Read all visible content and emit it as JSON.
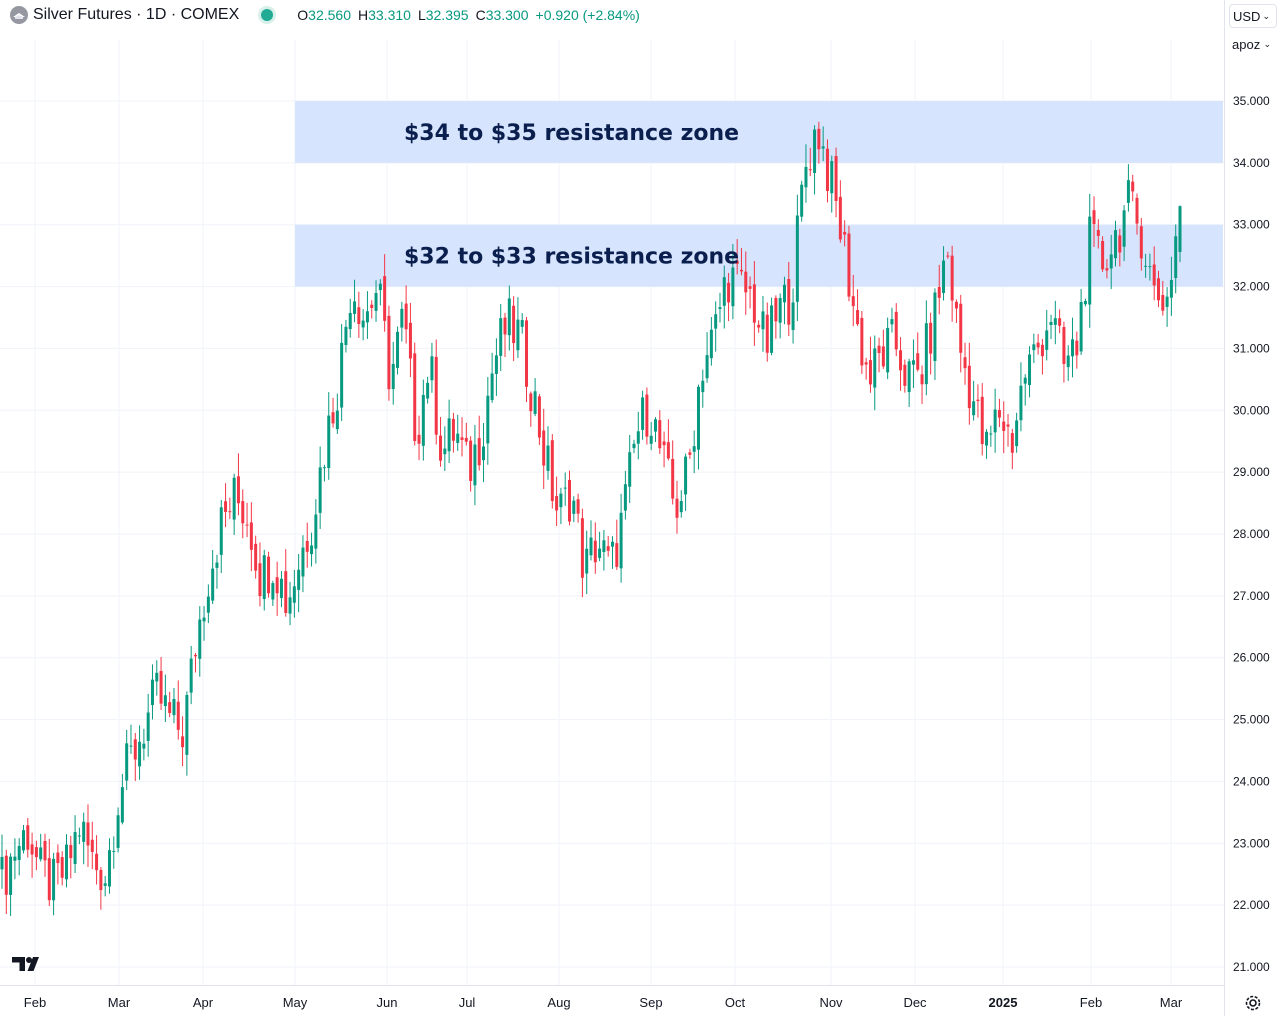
{
  "header": {
    "title": "Silver Futures · 1D · COMEX",
    "o_label": "O",
    "o_value": "32.560",
    "h_label": "H",
    "h_value": "33.310",
    "l_label": "L",
    "l_value": "32.395",
    "c_label": "C",
    "c_value": "33.300",
    "change": "+0.920 (+2.84%)"
  },
  "controls": {
    "currency": "USD",
    "unit": "apoz"
  },
  "icons": {
    "symbol": "silver-symbol-icon",
    "logo": "tradingview-logo-icon",
    "settings": "gear-icon"
  },
  "colors": {
    "up": "#089981",
    "down": "#f23645",
    "zone": "#d6e4fd",
    "label": "#0b1f4e",
    "grid": "#f0f3fa"
  },
  "chart_data": {
    "type": "candlestick",
    "y_axis": {
      "min": 21,
      "max": 35,
      "ticks": [
        "21.000",
        "22.000",
        "23.000",
        "24.000",
        "25.000",
        "26.000",
        "27.000",
        "28.000",
        "29.000",
        "30.000",
        "31.000",
        "32.000",
        "33.000",
        "34.000",
        "35.000"
      ]
    },
    "x_axis": {
      "ticks": [
        "Feb",
        "Mar",
        "Apr",
        "May",
        "Jun",
        "Jul",
        "Aug",
        "Sep",
        "Oct",
        "Nov",
        "Dec",
        "2025",
        "Feb",
        "Mar"
      ]
    },
    "zones": [
      {
        "low": 34,
        "high": 35,
        "start_month": "May",
        "label": "$34 to $35 resistance zone"
      },
      {
        "low": 32,
        "high": 33,
        "start_month": "May",
        "label": "$32 to $33 resistance zone"
      }
    ],
    "anchors": [
      [
        "Feb",
        22.4
      ],
      [
        "Feb",
        22.9
      ],
      [
        "Feb",
        23.2
      ],
      [
        "Feb",
        22.5
      ],
      [
        "Feb",
        22.3
      ],
      [
        "Mar",
        22.6
      ],
      [
        "Mar",
        23.3
      ],
      [
        "Mar",
        22.7
      ],
      [
        "Mar",
        22.5
      ],
      [
        "Mar",
        23.8
      ],
      [
        "Mar",
        24.4
      ],
      [
        "Apr",
        24.9
      ],
      [
        "Apr",
        25.4
      ],
      [
        "Apr",
        25.0
      ],
      [
        "Apr",
        24.8
      ],
      [
        "Apr",
        26.3
      ],
      [
        "Apr",
        27.4
      ],
      [
        "Apr",
        28.2
      ],
      [
        "Apr",
        28.6
      ],
      [
        "Apr",
        28.3
      ],
      [
        "May",
        27.3
      ],
      [
        "May",
        27.6
      ],
      [
        "May",
        26.9
      ],
      [
        "May",
        27.6
      ],
      [
        "May",
        28.3
      ],
      [
        "May",
        29.5
      ],
      [
        "May",
        30.5
      ],
      [
        "May",
        32.1
      ],
      [
        "May",
        31.5
      ],
      [
        "Jun",
        32.0
      ],
      [
        "Jun",
        30.5
      ],
      [
        "Jun",
        31.5
      ],
      [
        "Jun",
        29.6
      ],
      [
        "Jun",
        30.8
      ],
      [
        "Jun",
        29.3
      ],
      [
        "Jun",
        29.7
      ],
      [
        "Jun",
        29.0
      ],
      [
        "Jul",
        29.6
      ],
      [
        "Jul",
        30.8
      ],
      [
        "Jul",
        31.4
      ],
      [
        "Jul",
        31.2
      ],
      [
        "Jul",
        30.3
      ],
      [
        "Jul",
        29.2
      ],
      [
        "Aug",
        28.3
      ],
      [
        "Aug",
        28.7
      ],
      [
        "Aug",
        27.4
      ],
      [
        "Aug",
        27.9
      ],
      [
        "Aug",
        27.4
      ],
      [
        "Sep",
        28.3
      ],
      [
        "Sep",
        29.6
      ],
      [
        "Sep",
        30.1
      ],
      [
        "Sep",
        29.2
      ],
      [
        "Sep",
        28.4
      ],
      [
        "Sep",
        29.0
      ],
      [
        "Sep",
        30.7
      ],
      [
        "Sep",
        31.2
      ],
      [
        "Oct",
        32.2
      ],
      [
        "Oct",
        32.0
      ],
      [
        "Oct",
        31.8
      ],
      [
        "Oct",
        31.0
      ],
      [
        "Oct",
        31.6
      ],
      [
        "Oct",
        31.9
      ],
      [
        "Oct",
        33.9
      ],
      [
        "Oct",
        34.6
      ],
      [
        "Oct",
        33.7
      ],
      [
        "Nov",
        32.7
      ],
      [
        "Nov",
        31.4
      ],
      [
        "Nov",
        30.5
      ],
      [
        "Nov",
        30.9
      ],
      [
        "Nov",
        31.1
      ],
      [
        "Nov",
        30.5
      ],
      [
        "Dec",
        30.6
      ],
      [
        "Dec",
        31.5
      ],
      [
        "Dec",
        32.6
      ],
      [
        "Dec",
        31.0
      ],
      [
        "Dec",
        30.2
      ],
      [
        "Dec",
        29.3
      ],
      [
        "Dec",
        30.0
      ],
      [
        "2025",
        29.5
      ],
      [
        "2025",
        30.6
      ],
      [
        "2025",
        31.0
      ],
      [
        "2025",
        31.6
      ],
      [
        "2025",
        30.7
      ],
      [
        "2025",
        31.0
      ],
      [
        "Feb",
        32.7
      ],
      [
        "Feb",
        32.4
      ],
      [
        "Feb",
        32.8
      ],
      [
        "Feb",
        33.3
      ],
      [
        "Feb",
        32.9
      ],
      [
        "Mar",
        31.9
      ],
      [
        "Mar",
        31.8
      ],
      [
        "Mar",
        33.3
      ]
    ]
  }
}
